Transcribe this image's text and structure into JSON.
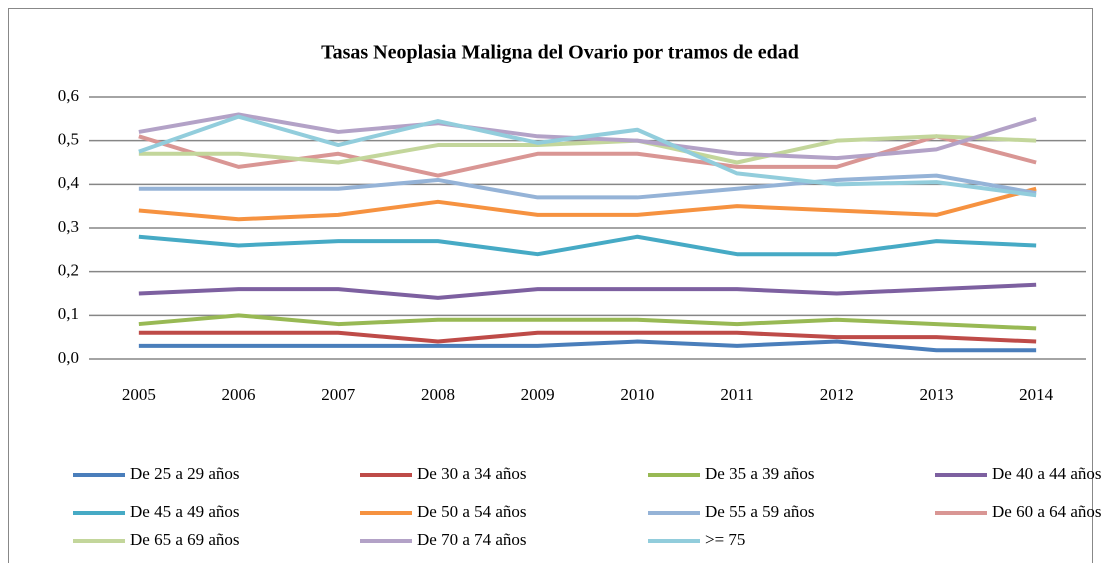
{
  "chart_data": {
    "type": "line",
    "title": "Tasas Neoplasia Maligna del Ovario por tramos de edad",
    "categories": [
      "2005",
      "2006",
      "2007",
      "2008",
      "2009",
      "2010",
      "2011",
      "2012",
      "2013",
      "2014"
    ],
    "ylim": [
      0,
      0.6
    ],
    "yticks": [
      {
        "value": 0,
        "label": "0,0"
      },
      {
        "value": 0.1,
        "label": "0,1"
      },
      {
        "value": 0.2,
        "label": "0,2"
      },
      {
        "value": 0.3,
        "label": "0,3"
      },
      {
        "value": 0.4,
        "label": "0,4"
      },
      {
        "value": 0.5,
        "label": "0,5"
      },
      {
        "value": 0.6,
        "label": "0,6"
      }
    ],
    "grid": true,
    "legend": "bottom",
    "series": [
      {
        "name": "De 25 a 29 años",
        "color": "#4a7ebb",
        "values": [
          0.03,
          0.03,
          0.03,
          0.03,
          0.03,
          0.04,
          0.03,
          0.04,
          0.02,
          0.02
        ]
      },
      {
        "name": "De 30 a 34 años",
        "color": "#be4b48",
        "values": [
          0.06,
          0.06,
          0.06,
          0.04,
          0.06,
          0.06,
          0.06,
          0.05,
          0.05,
          0.04
        ]
      },
      {
        "name": "De 35 a 39 años",
        "color": "#98b954",
        "values": [
          0.08,
          0.1,
          0.08,
          0.09,
          0.09,
          0.09,
          0.08,
          0.09,
          0.08,
          0.07
        ]
      },
      {
        "name": "De 40 a 44 años",
        "color": "#7d60a0",
        "values": [
          0.15,
          0.16,
          0.16,
          0.14,
          0.16,
          0.16,
          0.16,
          0.15,
          0.16,
          0.17
        ]
      },
      {
        "name": "De 45 a 49 años",
        "color": "#46aac5",
        "values": [
          0.28,
          0.26,
          0.27,
          0.27,
          0.24,
          0.28,
          0.24,
          0.24,
          0.27,
          0.26
        ]
      },
      {
        "name": "De 50 a 54 años",
        "color": "#f69240",
        "values": [
          0.34,
          0.32,
          0.33,
          0.36,
          0.33,
          0.33,
          0.35,
          0.34,
          0.33,
          0.39
        ]
      },
      {
        "name": "De 55 a 59 años",
        "color": "#95b3d7",
        "values": [
          0.39,
          0.39,
          0.39,
          0.41,
          0.37,
          0.37,
          0.39,
          0.41,
          0.42,
          0.38
        ]
      },
      {
        "name": "De 60 a 64 años",
        "color": "#d99694",
        "values": [
          0.51,
          0.44,
          0.47,
          0.42,
          0.47,
          0.47,
          0.44,
          0.44,
          0.51,
          0.45
        ]
      },
      {
        "name": "De 65 a 69 años",
        "color": "#c3d69b",
        "values": [
          0.47,
          0.47,
          0.45,
          0.49,
          0.49,
          0.5,
          0.45,
          0.5,
          0.51,
          0.5
        ]
      },
      {
        "name": "De 70 a 74 años",
        "color": "#b3a2c7",
        "values": [
          0.52,
          0.56,
          0.52,
          0.54,
          0.51,
          0.5,
          0.47,
          0.46,
          0.48,
          0.55
        ]
      },
      {
        "name": ">= 75",
        "color": "#92cddc",
        "values": [
          0.475,
          0.555,
          0.49,
          0.545,
          0.495,
          0.525,
          0.425,
          0.4,
          0.405,
          0.375
        ]
      }
    ]
  }
}
